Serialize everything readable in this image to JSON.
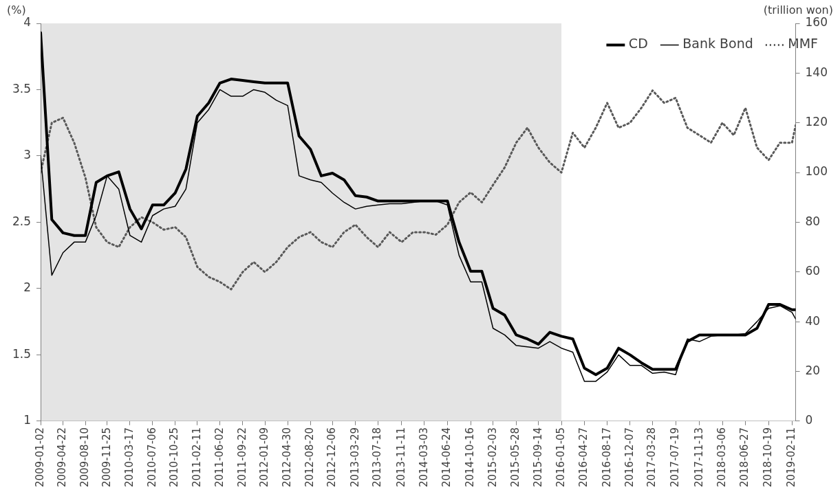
{
  "chart_data": {
    "type": "line",
    "ylabel": "(%)",
    "y2label": "(trillion won)",
    "x": [
      "2009-01-02",
      "2009-02-26",
      "2009-04-22",
      "2009-06-16",
      "2009-08-10",
      "2009-10-02",
      "2009-11-25",
      "2010-01-21",
      "2010-03-17",
      "2010-05-12",
      "2010-07-06",
      "2010-08-30",
      "2010-10-25",
      "2010-12-17",
      "2011-02-11",
      "2011-04-08",
      "2011-06-02",
      "2011-07-27",
      "2011-09-22",
      "2011-11-15",
      "2012-01-09",
      "2012-03-05",
      "2012-04-30",
      "2012-06-25",
      "2012-08-20",
      "2012-10-12",
      "2012-12-06",
      "2013-02-01",
      "2013-03-29",
      "2013-05-23",
      "2013-07-18",
      "2013-09-13",
      "2013-11-11",
      "2014-01-06",
      "2014-03-03",
      "2014-04-28",
      "2014-06-24",
      "2014-08-20",
      "2014-10-16",
      "2014-12-10",
      "2015-02-03",
      "2015-04-01",
      "2015-05-28",
      "2015-07-22",
      "2015-09-14",
      "2015-11-09",
      "2016-01-05",
      "2016-03-01",
      "2016-04-27",
      "2016-06-22",
      "2016-08-17",
      "2016-10-12",
      "2016-12-07",
      "2017-02-01",
      "2017-03-28",
      "2017-05-24",
      "2017-07-19",
      "2017-09-15",
      "2017-11-13",
      "2018-01-09",
      "2018-03-06",
      "2018-05-01",
      "2018-06-27",
      "2018-08-23",
      "2018-10-19",
      "2018-12-14",
      "2019-02-11",
      "2019-03-01"
    ],
    "series": [
      {
        "name": "CD",
        "color": "#000000",
        "line_style": "solid",
        "values": [
          3.93,
          2.52,
          2.42,
          2.4,
          2.4,
          2.8,
          2.85,
          2.88,
          2.6,
          2.45,
          2.63,
          2.63,
          2.72,
          2.9,
          3.3,
          3.4,
          3.55,
          3.58,
          3.57,
          3.56,
          3.55,
          3.55,
          3.55,
          3.15,
          3.05,
          2.85,
          2.87,
          2.82,
          2.7,
          2.69,
          2.66,
          2.66,
          2.66,
          2.66,
          2.66,
          2.66,
          2.66,
          2.35,
          2.13,
          2.13,
          1.85,
          1.8,
          1.65,
          1.62,
          1.58,
          1.67,
          1.64,
          1.62,
          1.4,
          1.35,
          1.4,
          1.55,
          1.5,
          1.44,
          1.39,
          1.39,
          1.39,
          1.6,
          1.65,
          1.65,
          1.65,
          1.65,
          1.65,
          1.7,
          1.88,
          1.88,
          1.84,
          1.84
        ]
      },
      {
        "name": "Bank Bond",
        "color": "#000000",
        "line_style": "solid",
        "values": [
          3.0,
          2.1,
          2.27,
          2.35,
          2.35,
          2.55,
          2.85,
          2.75,
          2.4,
          2.35,
          2.55,
          2.6,
          2.62,
          2.75,
          3.25,
          3.35,
          3.5,
          3.45,
          3.45,
          3.5,
          3.48,
          3.42,
          3.38,
          2.85,
          2.82,
          2.8,
          2.72,
          2.65,
          2.6,
          2.62,
          2.63,
          2.64,
          2.64,
          2.65,
          2.66,
          2.66,
          2.63,
          2.25,
          2.05,
          2.05,
          1.7,
          1.65,
          1.57,
          1.56,
          1.55,
          1.6,
          1.55,
          1.52,
          1.3,
          1.3,
          1.37,
          1.5,
          1.42,
          1.42,
          1.36,
          1.37,
          1.35,
          1.62,
          1.6,
          1.64,
          1.65,
          1.65,
          1.66,
          1.75,
          1.85,
          1.87,
          1.82,
          1.77
        ]
      },
      {
        "name": "MMF",
        "color": "#595959",
        "line_style": "dotted",
        "axis": "y2",
        "values": [
          100,
          120,
          122,
          112,
          98,
          78,
          72,
          70,
          78,
          82,
          80,
          77,
          78,
          74,
          62,
          58,
          56,
          53,
          60,
          64,
          60,
          64,
          70,
          74,
          76,
          72,
          70,
          76,
          79,
          74,
          70,
          76,
          72,
          76,
          76,
          75,
          79,
          88,
          92,
          88,
          95,
          102,
          112,
          118,
          110,
          104,
          100,
          116,
          110,
          118,
          128,
          118,
          120,
          126,
          133,
          128,
          130,
          118,
          115,
          112,
          120,
          115,
          126,
          110,
          105,
          112,
          112,
          119
        ]
      }
    ],
    "xlim": [
      "2009-01-02",
      "2019-03-01"
    ],
    "xticks": [
      "2009-01-02",
      "2009-04-22",
      "2009-08-10",
      "2009-11-25",
      "2010-03-17",
      "2010-07-06",
      "2010-10-25",
      "2011-02-11",
      "2011-06-02",
      "2011-09-22",
      "2012-01-09",
      "2012-04-30",
      "2012-08-20",
      "2012-12-06",
      "2013-03-29",
      "2013-07-18",
      "2013-11-11",
      "2014-03-03",
      "2014-06-24",
      "2014-10-16",
      "2015-02-03",
      "2015-05-28",
      "2015-09-14",
      "2016-01-05",
      "2016-04-27",
      "2016-08-17",
      "2016-12-07",
      "2017-03-28",
      "2017-07-19",
      "2017-11-13",
      "2018-03-06",
      "2018-06-27",
      "2018-10-19",
      "2019-02-11"
    ],
    "ylim": [
      1,
      4
    ],
    "yticks": [
      1,
      1.5,
      2,
      2.5,
      3,
      3.5,
      4
    ],
    "y2lim": [
      0,
      160
    ],
    "y2ticks": [
      0,
      20,
      40,
      60,
      80,
      100,
      120,
      140,
      160
    ],
    "bands": [
      {
        "axis": "x",
        "from": "2009-01-02",
        "to": "2016-01-05",
        "color": "#e4e4e4"
      }
    ],
    "grid": false,
    "legend": "top right",
    "marker": "none"
  }
}
